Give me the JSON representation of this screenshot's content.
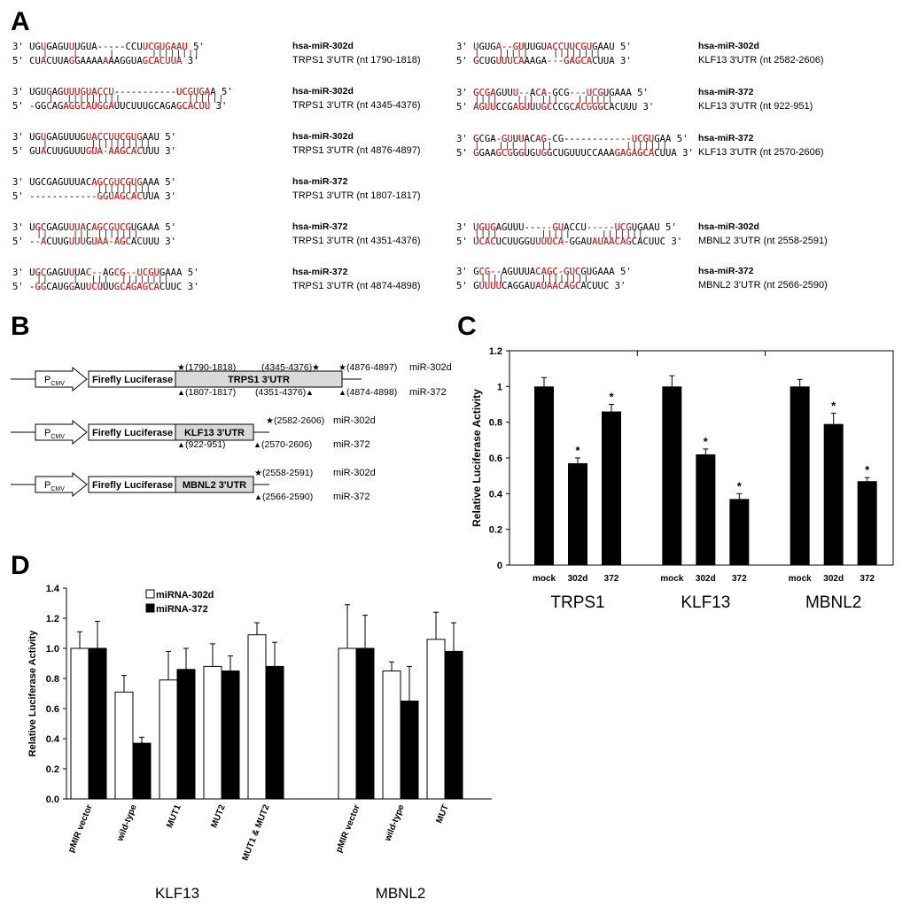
{
  "panel_a": {
    "letter": "A",
    "left": [
      {
        "top": "3' UGUGAGUUUGUA-----CCUUCGUGAAU 5'",
        "bars": "     |    |     |      ||||||||",
        "bot": "5' CUACUUAGGAAAAAAAGGUAGCACUUA 3'",
        "mir": "hsa-miR-302d",
        "utr": "TRPS1 3'UTR (nt 1790-1818)"
      },
      {
        "top": "3' UGUGAGUUUGUACCU-----------UCGUGAA 5'",
        "bars": "      |  |||||||||           ||||||",
        "bot": "5' -GGCAGAGGCAUGGAUUCUUUGCAGAGCACUU 3'",
        "mir": "hsa-miR-302d",
        "utr": "TRPS1 3'UTR (nt 4345-4376)"
      },
      {
        "top": "3' UGUGAGUUUGUACCUUCGUGAAU 5'",
        "bars": "     |       ||||||||||",
        "bot": "5' GUACUUGUUUGUA-AAGCACUUU 3'",
        "mir": "hsa-miR-302d",
        "utr": "TRPS1 3'UTR (nt 4876-4897)"
      },
      {
        "top": "3' UGCGAGUUUACAGCGUCGUGAAA 5'",
        "bars": "              |||||||||",
        "bot": "5' ------------GGUAGCACUUA 3'",
        "mir": "hsa-miR-372",
        "utr": "TRPS1 3'UTR (nt 1807-1817)"
      },
      {
        "top": "3' UGCGAGUUUACAGCGUCGUGAAA 5'",
        "bars": "    ||    ||| |||||||",
        "bot": "5' --ACUUGUUUGUAA-AGCACUUU 3'",
        "mir": "hsa-miR-372",
        "utr": "TRPS1 3'UTR (nt 4351-4376)"
      },
      {
        "top": "3' UGCGAGUUUAC--AGCG--UCGUGAAA 5'",
        "bars": "    ||    |  |||  ||||||||",
        "bot": "5' -GGCAUGGAUUCUUUGCAGAGCACUUC 3'",
        "mir": "hsa-miR-372",
        "utr": "TRPS1 3'UTR (nt 4874-4898)"
      }
    ],
    "right": [
      {
        "top": "3' UGUGA--GUUUGUACCUUCGUGAAU 5'",
        "bars": "   |   |||||    ||||||||",
        "bot": "5' GCUGUUUCAAAGA---GAGCACUUA 3'",
        "mir": "hsa-miR-302d",
        "utr": "KLF13 3'UTR (nt 2582-2606)"
      },
      {
        "top": "3' GCGAGUUU--ACA-GCG---UCGUGAAA 5'",
        "bars": "   ||||   ||| |||   ||||||",
        "bot": "5' AGUUCCGAGUUUGCCCGCACGGGCACUUU 3'",
        "mir": "hsa-miR-372",
        "utr": "KLF13 3'UTR (nt 922-951)"
      },
      {
        "top": "3' GCGA-GUUUACAG-CG------------UCGUGAA 5'",
        "bars": "   |   ||| |  ||            |||||||",
        "bot": "5' GGAAGCGGGUGUGGCUGUUUCCAAAGAGAGCACUUA 3'",
        "mir": "hsa-miR-372",
        "utr": "KLF13 3'UTR (nt 2570-2606)"
      },
      {
        "top": "3' UGUGAGUUU-----GUACCU-----UCGUGAAU 5'",
        "bars": "   ||||       |||||     |||||||",
        "bot": "5' UCACUCUUGGUUUUCA-GGAUAUAACAGCACUUC 3'",
        "mir": "hsa-miR-302d",
        "utr": "MBNL2 3'UTR (nt 2558-2591)"
      },
      {
        "top": "3' GCG--AGUUUACAGC-GUCGUGAAA 5'",
        "bars": "    ||||      ||||||||",
        "bot": "5' GUUUUCAGGAUAUAACAGCACUUC 3'",
        "mir": "hsa-miR-372",
        "utr": "MBNL2 3'UTR (nt 2566-2590)"
      }
    ]
  },
  "panel_b": {
    "letter": "B",
    "promoter": "PCMV",
    "promoter_main": "P",
    "promoter_sub": "CMV",
    "luciferase": "Firefly Luciferase",
    "constructs": [
      {
        "utr": "TRPS1 3'UTR",
        "top": [
          "(1790-1818)",
          "(4345-4376)",
          "(4876-4897)"
        ],
        "bottom": [
          "(1807-1817)",
          "(4351-4376)",
          "(4874-4898)"
        ],
        "mir_top": "miR-302d",
        "mir_bot": "miR-372"
      },
      {
        "utr": "KLF13 3'UTR",
        "top": [
          "(2582-2606)"
        ],
        "bottom": [
          "(922-951)",
          "(2570-2606)"
        ],
        "mir_top": "miR-302d",
        "mir_bot": "miR-372"
      },
      {
        "utr": "MBNL2 3'UTR",
        "top": [
          "(2558-2591)"
        ],
        "bottom": [
          "(2566-2590)"
        ],
        "mir_top": "miR-302d",
        "mir_bot": "miR-372"
      }
    ],
    "star_glyph": "★",
    "triangle_glyph": "▲"
  },
  "panel_c": {
    "letter": "C",
    "star": "*",
    "chart_data": {
      "type": "bar",
      "ylabel": "Relative Luciferase Activity",
      "ylim": [
        0,
        1.2
      ],
      "yticks": [
        "0",
        "0.2",
        "0.4",
        "0.6",
        "0.8",
        "1",
        "1.2"
      ],
      "groups": [
        {
          "name": "TRPS1",
          "categories": [
            "mock",
            "302d",
            "372"
          ],
          "values": [
            1.0,
            0.57,
            0.86
          ],
          "errors": [
            0.05,
            0.03,
            0.04
          ],
          "significant": [
            false,
            true,
            true
          ]
        },
        {
          "name": "KLF13",
          "categories": [
            "mock",
            "302d",
            "372"
          ],
          "values": [
            1.0,
            0.62,
            0.37
          ],
          "errors": [
            0.06,
            0.03,
            0.03
          ],
          "significant": [
            false,
            true,
            true
          ]
        },
        {
          "name": "MBNL2",
          "categories": [
            "mock",
            "302d",
            "372"
          ],
          "values": [
            1.0,
            0.79,
            0.47
          ],
          "errors": [
            0.04,
            0.06,
            0.02
          ],
          "significant": [
            false,
            true,
            true
          ]
        }
      ],
      "color": "#000000"
    }
  },
  "panel_d": {
    "letter": "D",
    "chart_data": {
      "type": "bar",
      "ylabel": "Relative Luciferase Activity",
      "ylim": [
        0,
        1.4
      ],
      "yticks": [
        "0.0",
        "0.2",
        "0.4",
        "0.6",
        "0.8",
        "1.0",
        "1.2",
        "1.4"
      ],
      "series": [
        {
          "name": "miRNA-302d",
          "color": "#ffffff"
        },
        {
          "name": "miRNA-372",
          "color": "#000000"
        }
      ],
      "groups": [
        {
          "name": "KLF13",
          "categories": [
            "pMIR vector",
            "wild-type",
            "MUT1",
            "MUT2",
            "MUT1 & MUT2"
          ],
          "values302d": [
            1.0,
            0.71,
            0.79,
            0.88,
            1.09
          ],
          "err302d": [
            0.11,
            0.11,
            0.19,
            0.15,
            0.08
          ],
          "values372": [
            1.0,
            0.37,
            0.86,
            0.85,
            0.88
          ],
          "err372": [
            0.18,
            0.04,
            0.14,
            0.1,
            0.16
          ]
        },
        {
          "name": "MBNL2",
          "categories": [
            "pMIR vector",
            "wild-type",
            "MUT"
          ],
          "values302d": [
            1.0,
            0.85,
            1.06
          ],
          "err302d": [
            0.29,
            0.06,
            0.18
          ],
          "values372": [
            1.0,
            0.65,
            0.98
          ],
          "err372": [
            0.22,
            0.23,
            0.19
          ]
        }
      ]
    }
  }
}
